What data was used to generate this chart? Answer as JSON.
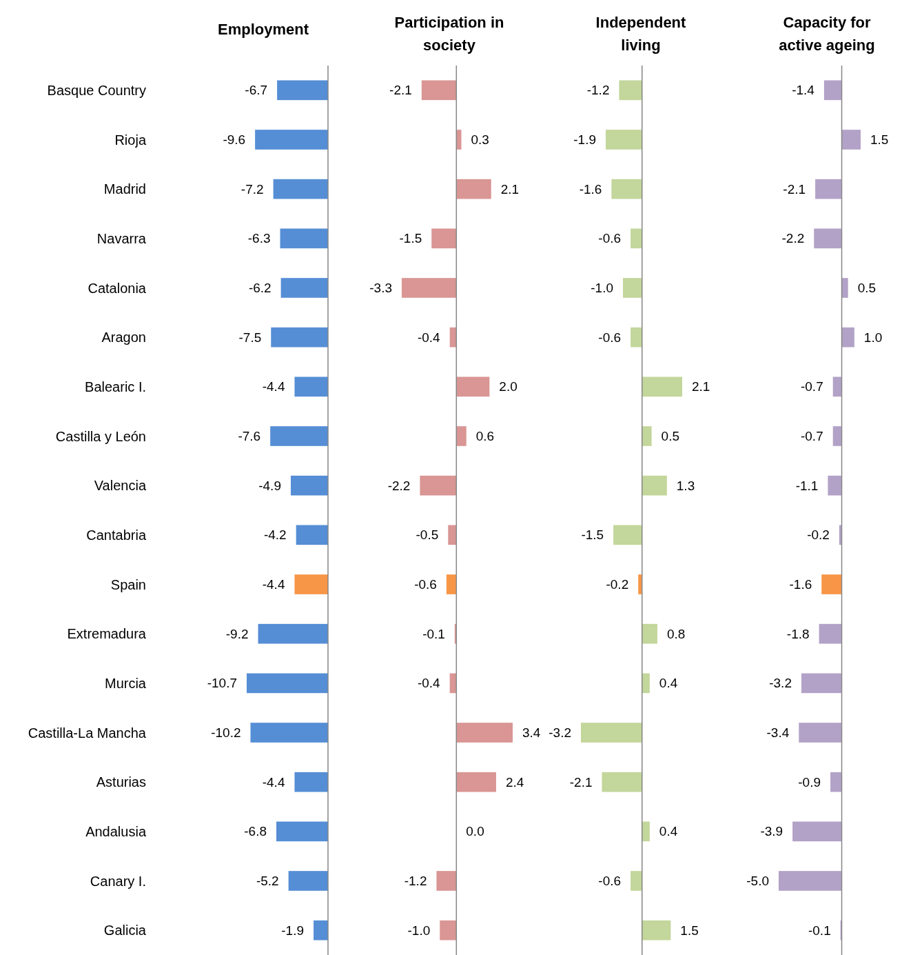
{
  "chart_data": [
    {
      "type": "bar",
      "orientation": "horizontal",
      "title": "Employment",
      "categories": [
        "Basque Country",
        "Rioja",
        "Madrid",
        "Navarra",
        "Catalonia",
        "Aragon",
        "Balearic I.",
        "Castilla y León",
        "Valencia",
        "Cantabria",
        "Spain",
        "Extremadura",
        "Murcia",
        "Castilla-La Mancha",
        "Asturias",
        "Andalusia",
        "Canary I.",
        "Galicia"
      ],
      "values": [
        -6.7,
        -9.6,
        -7.2,
        -6.3,
        -6.2,
        -7.5,
        -4.4,
        -7.6,
        -4.9,
        -4.2,
        -4.4,
        -9.2,
        -10.7,
        -10.2,
        -4.4,
        -6.8,
        -5.2,
        -1.9
      ],
      "value_labels": [
        "-6.7",
        "-9.6",
        "-7.2",
        "-6.3",
        "-6.2",
        "-7.5",
        "-4.4",
        "-7.6",
        "-4.9",
        "-4.2",
        "-4.4",
        "-9.2",
        "-10.7",
        "-10.2",
        "-4.4",
        "-6.8",
        "-5.2",
        "-1.9"
      ],
      "colors": [
        "#558ed5",
        "#558ed5",
        "#558ed5",
        "#558ed5",
        "#558ed5",
        "#558ed5",
        "#558ed5",
        "#558ed5",
        "#558ed5",
        "#558ed5",
        "#f79646",
        "#558ed5",
        "#558ed5",
        "#558ed5",
        "#558ed5",
        "#558ed5",
        "#558ed5",
        "#558ed5"
      ],
      "tick_labels": "y"
    },
    {
      "type": "bar",
      "orientation": "horizontal",
      "title": "Participation in society",
      "categories": [
        null,
        null,
        null,
        null,
        null,
        null,
        null,
        null,
        null,
        null,
        null,
        null,
        null,
        null,
        null,
        null,
        null,
        null
      ],
      "values": [
        -2.1,
        0.3,
        2.1,
        -1.5,
        -3.3,
        -0.4,
        2.0,
        0.6,
        -2.2,
        -0.5,
        -0.6,
        -0.1,
        -0.4,
        3.4,
        2.4,
        0.0,
        -1.2,
        -1.0
      ],
      "value_labels": [
        "-2.1",
        "0.3",
        "2.1",
        "-1.5",
        "-3.3",
        "-0.4",
        "2.0",
        "0.6",
        "-2.2",
        "-0.5",
        "-0.6",
        "-0.1",
        "-0.4",
        "3.4",
        "2.4",
        "0.0",
        "-1.2",
        "-1.0"
      ],
      "colors": [
        "#d99694",
        "#d99694",
        "#d99694",
        "#d99694",
        "#d99694",
        "#d99694",
        "#d99694",
        "#d99694",
        "#d99694",
        "#d99694",
        "#f79646",
        "#d99694",
        "#d99694",
        "#d99694",
        "#d99694",
        "#d99694",
        "#d99694",
        "#d99694"
      ],
      "tick_labels": false
    },
    {
      "type": "bar",
      "orientation": "horizontal",
      "title": "Independent living",
      "categories": [
        null,
        null,
        null,
        null,
        null,
        null,
        null,
        null,
        null,
        null,
        null,
        null,
        null,
        null,
        null,
        null,
        null,
        null
      ],
      "values": [
        -1.2,
        -1.9,
        -1.6,
        -0.6,
        -1.0,
        -0.6,
        2.1,
        0.5,
        1.3,
        -1.5,
        -0.2,
        0.8,
        0.4,
        -3.2,
        -2.1,
        0.4,
        -0.6,
        1.5
      ],
      "value_labels": [
        "-1.2",
        "-1.9",
        "-1.6",
        "-0.6",
        "-1.0",
        "-0.6",
        "2.1",
        "0.5",
        "1.3",
        "-1.5",
        "-0.2",
        "0.8",
        "0.4",
        "-3.2",
        "-2.1",
        "0.4",
        "-0.6",
        "1.5"
      ],
      "colors": [
        "#c3d69b",
        "#c3d69b",
        "#c3d69b",
        "#c3d69b",
        "#c3d69b",
        "#c3d69b",
        "#c3d69b",
        "#c3d69b",
        "#c3d69b",
        "#c3d69b",
        "#f79646",
        "#c3d69b",
        "#c3d69b",
        "#c3d69b",
        "#c3d69b",
        "#c3d69b",
        "#c3d69b",
        "#c3d69b"
      ],
      "tick_labels": false
    },
    {
      "type": "bar",
      "orientation": "horizontal",
      "title": "Capacity for active ageing",
      "categories": [
        null,
        null,
        null,
        null,
        null,
        null,
        null,
        null,
        null,
        null,
        null,
        null,
        null,
        null,
        null,
        null,
        null,
        null
      ],
      "values": [
        -1.4,
        1.5,
        -2.1,
        -2.2,
        0.5,
        1.0,
        -0.7,
        -0.7,
        -1.1,
        -0.2,
        -1.6,
        -1.8,
        -3.2,
        -3.4,
        -0.9,
        -3.9,
        -5.0,
        -0.1
      ],
      "value_labels": [
        "-1.4",
        "1.5",
        "-2.1",
        "-2.2",
        "0.5",
        "1.0",
        "-0.7",
        "-0.7",
        "-1.1",
        "-0.2",
        "-1.6",
        "-1.8",
        "-3.2",
        "-3.4",
        "-0.9",
        "-3.9",
        "-5.0",
        "-0.1"
      ],
      "colors": [
        "#b3a2c7",
        "#b3a2c7",
        "#b3a2c7",
        "#b3a2c7",
        "#b3a2c7",
        "#b3a2c7",
        "#b3a2c7",
        "#b3a2c7",
        "#b3a2c7",
        "#b3a2c7",
        "#f79646",
        "#b3a2c7",
        "#b3a2c7",
        "#b3a2c7",
        "#b3a2c7",
        "#b3a2c7",
        "#b3a2c7",
        "#b3a2c7"
      ],
      "tick_labels": false
    }
  ]
}
